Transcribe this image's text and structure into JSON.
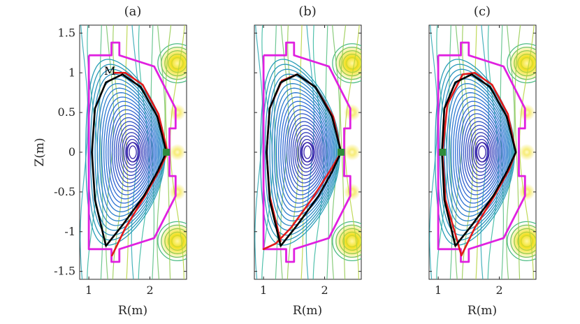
{
  "chart_data": [
    {
      "type": "contour",
      "panel": "a",
      "title": "(a)",
      "xlabel": "R(m)",
      "ylabel": "Z(m)",
      "xlim": [
        0.85,
        2.6
      ],
      "ylim": [
        -1.6,
        1.6
      ],
      "xticks": [
        1,
        2
      ],
      "yticks": [
        -1.5,
        -1,
        -0.5,
        0,
        0.5,
        1,
        1.5
      ],
      "ytick_labels": [
        "-1.5",
        "-1",
        "-0.5",
        "0",
        "0.5",
        "1",
        "1.5"
      ],
      "xtick_labels": [
        "1",
        "2"
      ],
      "magnetic_axis": [
        1.72,
        0.0
      ],
      "marker": {
        "R": 2.27,
        "Z": 0.0,
        "color": "#2e8b3a"
      },
      "annotation": {
        "text": "M",
        "R": 1.25,
        "Z": 1.1
      },
      "series": [
        {
          "role": "black",
          "color": "#000000",
          "R": [
            1.28,
            1.55,
            1.9,
            2.12,
            2.27,
            2.12,
            1.85,
            1.55,
            1.28,
            1.1,
            1.05,
            1.1,
            1.28
          ],
          "Z": [
            -1.18,
            -0.92,
            -0.55,
            -0.25,
            0.0,
            0.45,
            0.82,
            0.98,
            0.88,
            0.55,
            0.0,
            -0.6,
            -1.18
          ]
        },
        {
          "role": "red",
          "color": "#e01a1a",
          "R": [
            1.38,
            1.6,
            1.92,
            2.16,
            2.29,
            2.14,
            1.88,
            1.6,
            1.42
          ],
          "Z": [
            -1.3,
            -0.95,
            -0.55,
            -0.22,
            0.0,
            0.48,
            0.85,
            1.0,
            1.0
          ]
        }
      ]
    },
    {
      "type": "contour",
      "panel": "b",
      "title": "(b)",
      "xlabel": "R(m)",
      "ylabel": "",
      "xlim": [
        0.85,
        2.6
      ],
      "ylim": [
        -1.6,
        1.6
      ],
      "xticks": [
        1,
        2
      ],
      "xtick_labels": [
        "1",
        "2"
      ],
      "magnetic_axis": [
        1.72,
        0.0
      ],
      "marker": {
        "R": 2.27,
        "Z": 0.0,
        "color": "#2e8b3a"
      },
      "series": [
        {
          "role": "black",
          "color": "#000000",
          "R": [
            1.28,
            1.55,
            1.9,
            2.12,
            2.27,
            2.12,
            1.85,
            1.55,
            1.28,
            1.1,
            1.05,
            1.1,
            1.28
          ],
          "Z": [
            -1.18,
            -0.92,
            -0.55,
            -0.25,
            0.0,
            0.45,
            0.82,
            0.98,
            0.88,
            0.55,
            0.0,
            -0.6,
            -1.18
          ]
        },
        {
          "role": "red",
          "color": "#e01a1a",
          "R": [
            1.0,
            1.2,
            1.45,
            1.8,
            2.1,
            2.27,
            2.14,
            1.85,
            1.55,
            1.3,
            1.1,
            1.05,
            1.1,
            1.28
          ],
          "Z": [
            -1.22,
            -1.15,
            -0.95,
            -0.58,
            -0.22,
            0.0,
            0.45,
            0.82,
            0.98,
            0.9,
            0.55,
            0.0,
            -0.55,
            -1.12
          ]
        }
      ]
    },
    {
      "type": "contour",
      "panel": "c",
      "title": "(c)",
      "xlabel": "R(m)",
      "ylabel": "",
      "xlim": [
        0.85,
        2.6
      ],
      "ylim": [
        -1.6,
        1.6
      ],
      "xticks": [
        1,
        2
      ],
      "xtick_labels": [
        "1",
        "2"
      ],
      "magnetic_axis": [
        1.72,
        0.0
      ],
      "marker": {
        "R": 1.07,
        "Z": 0.0,
        "color": "#2e8b3a"
      },
      "series": [
        {
          "role": "black",
          "color": "#000000",
          "R": [
            1.28,
            1.55,
            1.9,
            2.12,
            2.27,
            2.12,
            1.85,
            1.55,
            1.28,
            1.1,
            1.06,
            1.1,
            1.28
          ],
          "Z": [
            -1.18,
            -0.92,
            -0.55,
            -0.25,
            0.0,
            0.45,
            0.82,
            0.98,
            0.88,
            0.55,
            0.0,
            -0.6,
            -1.18
          ]
        },
        {
          "role": "red",
          "color": "#e01a1a",
          "R": [
            1.38,
            1.6,
            1.92,
            2.16,
            2.27,
            2.14,
            1.88,
            1.6,
            1.4,
            1.15,
            1.07,
            1.12,
            1.38
          ],
          "Z": [
            -1.3,
            -0.95,
            -0.55,
            -0.22,
            0.0,
            0.48,
            0.85,
            1.0,
            0.98,
            0.6,
            0.0,
            -0.6,
            -1.3
          ]
        }
      ]
    }
  ],
  "vessel": {
    "color": "#e020e0",
    "R": [
      1.0,
      1.37,
      1.37,
      1.5,
      1.5,
      2.07,
      2.42,
      2.42,
      2.32,
      2.32,
      2.42,
      2.42,
      2.07,
      1.5,
      1.5,
      1.37,
      1.37,
      1.0
    ],
    "Z": [
      1.22,
      1.22,
      1.38,
      1.38,
      1.22,
      1.08,
      0.55,
      0.3,
      0.3,
      -0.3,
      -0.3,
      -0.55,
      -1.08,
      -1.22,
      -1.38,
      -1.38,
      -1.22,
      -1.22
    ]
  },
  "contour_colors": {
    "inner": "#3b1fa8",
    "mid": "#2d6fd6",
    "outer": "#27b4a8",
    "coil": "#f2e020",
    "coil_core": "#fff7a0"
  }
}
